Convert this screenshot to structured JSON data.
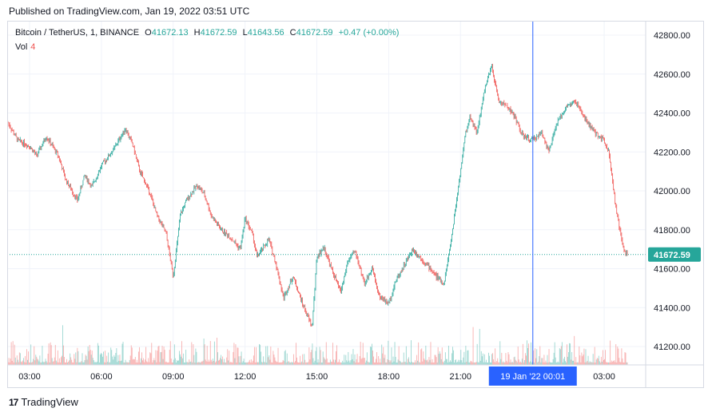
{
  "header": {
    "published": "Published on TradingView.com, Jan 19, 2022 03:51 UTC"
  },
  "legend": {
    "symbol": "Bitcoin / TetherUS, 1, BINANCE",
    "o_label": "O",
    "o_value": "41672.13",
    "h_label": "H",
    "h_value": "41672.59",
    "l_label": "L",
    "l_value": "41643.56",
    "c_label": "C",
    "c_value": "41672.59",
    "change": "+0.47 (+0.00%)",
    "vol_label": "Vol",
    "vol_value": "4"
  },
  "colors": {
    "up": "#26a69a",
    "down": "#ef5350",
    "crosshair": "#2962ff",
    "price_tag": "#26a69a"
  },
  "chart_data": {
    "type": "candlestick",
    "y_ticks": [
      "42800.00",
      "42600.00",
      "42400.00",
      "42200.00",
      "42000.00",
      "41800.00",
      "41600.00",
      "41400.00",
      "41200.00"
    ],
    "y_tick_values": [
      42800,
      42600,
      42400,
      42200,
      42000,
      41800,
      41600,
      41400,
      41200
    ],
    "x_ticks": [
      "03:00",
      "06:00",
      "09:00",
      "12:00",
      "15:00",
      "18:00",
      "21:00",
      "03:00"
    ],
    "x_tick_hours": [
      3,
      6,
      9,
      12,
      15,
      18,
      21,
      27
    ],
    "crosshair_label": "19 Jan '22   00:01",
    "crosshair_hour": 24.02,
    "last_price": "41672.59",
    "last_price_value": 41672.59,
    "x_range_hours": [
      2.1,
      28.7
    ],
    "price_path": [
      [
        2.1,
        42350
      ],
      [
        2.5,
        42260
      ],
      [
        3.0,
        42230
      ],
      [
        3.3,
        42180
      ],
      [
        3.7,
        42280
      ],
      [
        4.2,
        42180
      ],
      [
        4.5,
        42060
      ],
      [
        5.0,
        41950
      ],
      [
        5.3,
        42080
      ],
      [
        5.6,
        42020
      ],
      [
        6.0,
        42130
      ],
      [
        6.5,
        42210
      ],
      [
        7.0,
        42320
      ],
      [
        7.3,
        42240
      ],
      [
        7.6,
        42100
      ],
      [
        8.0,
        42000
      ],
      [
        8.3,
        41880
      ],
      [
        8.7,
        41780
      ],
      [
        9.0,
        41560
      ],
      [
        9.3,
        41880
      ],
      [
        9.6,
        41960
      ],
      [
        10.0,
        42030
      ],
      [
        10.3,
        41980
      ],
      [
        10.6,
        41870
      ],
      [
        11.0,
        41800
      ],
      [
        11.4,
        41760
      ],
      [
        11.8,
        41700
      ],
      [
        12.0,
        41860
      ],
      [
        12.3,
        41780
      ],
      [
        12.5,
        41660
      ],
      [
        13.0,
        41750
      ],
      [
        13.3,
        41620
      ],
      [
        13.6,
        41450
      ],
      [
        14.0,
        41560
      ],
      [
        14.4,
        41420
      ],
      [
        14.8,
        41300
      ],
      [
        15.0,
        41660
      ],
      [
        15.3,
        41710
      ],
      [
        15.6,
        41600
      ],
      [
        16.0,
        41480
      ],
      [
        16.3,
        41640
      ],
      [
        16.6,
        41690
      ],
      [
        17.0,
        41520
      ],
      [
        17.3,
        41610
      ],
      [
        17.6,
        41460
      ],
      [
        18.0,
        41420
      ],
      [
        18.3,
        41540
      ],
      [
        18.7,
        41630
      ],
      [
        19.0,
        41700
      ],
      [
        19.3,
        41660
      ],
      [
        19.6,
        41620
      ],
      [
        20.0,
        41560
      ],
      [
        20.3,
        41520
      ],
      [
        20.6,
        41740
      ],
      [
        21.0,
        42100
      ],
      [
        21.2,
        42290
      ],
      [
        21.4,
        42380
      ],
      [
        21.7,
        42300
      ],
      [
        22.0,
        42520
      ],
      [
        22.3,
        42640
      ],
      [
        22.6,
        42460
      ],
      [
        23.0,
        42430
      ],
      [
        23.3,
        42370
      ],
      [
        23.6,
        42280
      ],
      [
        24.0,
        42260
      ],
      [
        24.4,
        42300
      ],
      [
        24.7,
        42200
      ],
      [
        25.0,
        42340
      ],
      [
        25.4,
        42430
      ],
      [
        25.8,
        42460
      ],
      [
        26.2,
        42370
      ],
      [
        26.6,
        42300
      ],
      [
        27.0,
        42260
      ],
      [
        27.2,
        42200
      ],
      [
        27.5,
        41900
      ],
      [
        27.8,
        41700
      ],
      [
        28.0,
        41672
      ]
    ]
  }
}
